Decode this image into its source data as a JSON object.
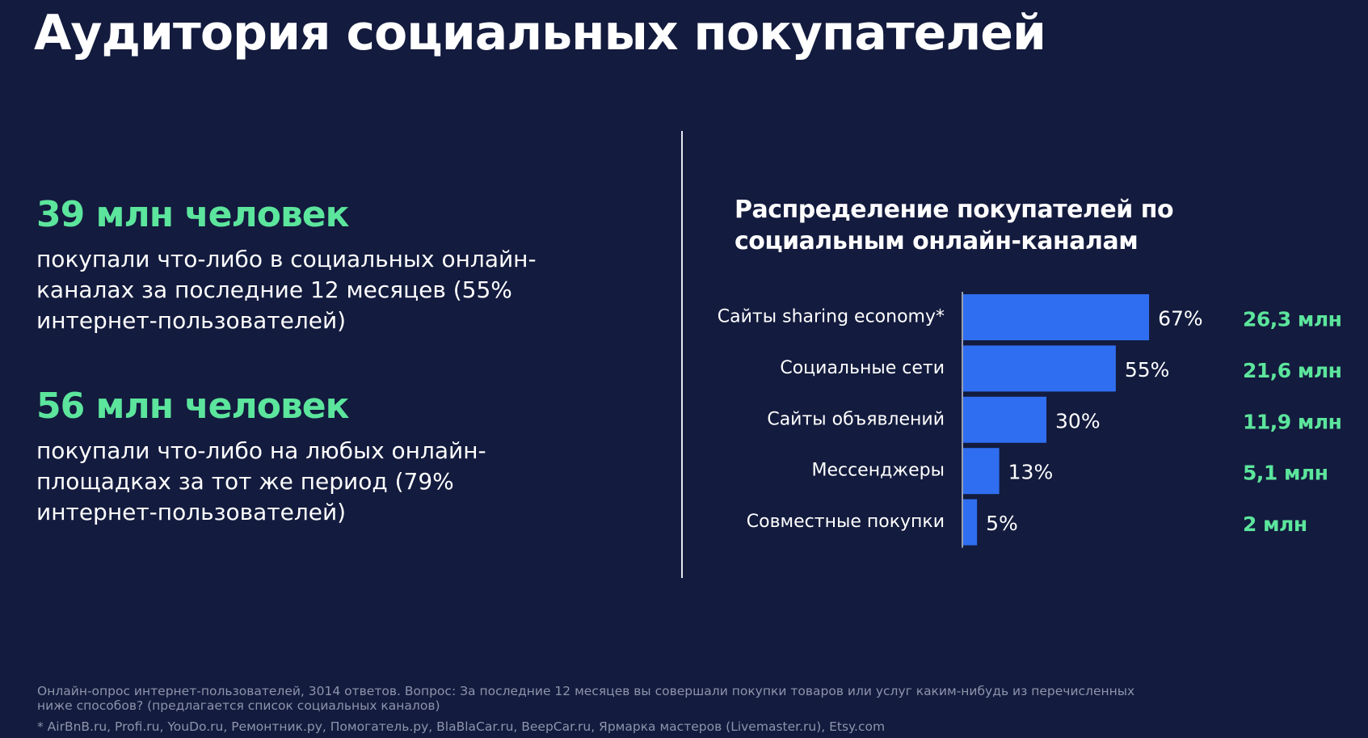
{
  "header": {
    "title": "Аудитория социальных покупателей"
  },
  "stats": [
    {
      "headline": "39 млн человек",
      "text": "покупали что-либо в социальных онлайн-каналах за последние 12 месяцев (55% интернет-пользователей)"
    },
    {
      "headline": "56 млн человек",
      "text": "покупали что-либо на любых онлайн-площадках за тот же период (79% интернет-пользователей)"
    }
  ],
  "chart_data": {
    "type": "bar",
    "orientation": "horizontal",
    "title": "Распределение покупателей по социальным онлайн-каналам",
    "categories": [
      "Сайты sharing economy*",
      "Социальные сети",
      "Сайты объявлений",
      "Мессенджеры",
      "Совместные покупки"
    ],
    "values": [
      67,
      55,
      30,
      13,
      5
    ],
    "value_labels": [
      "67%",
      "55%",
      "30%",
      "13%",
      "5%"
    ],
    "audience_labels": [
      "26,3 млн",
      "21,6 млн",
      "11,9 млн",
      "5,1 млн",
      "2 млн"
    ],
    "color": "#2f6ef0"
  },
  "footer": {
    "note": "Онлайн-опрос интернет-пользователей, 3014 ответов. Вопрос: За последние 12 месяцев вы совершали покупки товаров или услуг каким-нибудь из перечисленных ниже способов? (предлагается список социальных каналов)",
    "footnote": "* AirBnB.ru, Profi.ru, YouDo.ru, Ремонтник.ру, Помогатель.ру, BlaBlaCar.ru, BeepCar.ru, Ярмарка мастеров (Livemaster.ru), Etsy.com"
  }
}
